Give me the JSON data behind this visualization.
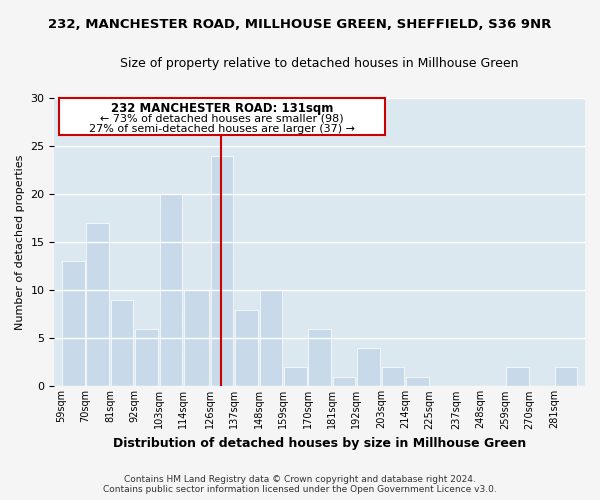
{
  "title": "232, MANCHESTER ROAD, MILLHOUSE GREEN, SHEFFIELD, S36 9NR",
  "subtitle": "Size of property relative to detached houses in Millhouse Green",
  "xlabel": "Distribution of detached houses by size in Millhouse Green",
  "ylabel": "Number of detached properties",
  "bar_color": "#c8daea",
  "bar_edge_color": "#ffffff",
  "grid_color": "#ffffff",
  "bg_color": "#dce8f0",
  "fig_color": "#f5f5f5",
  "annotation_box_edge": "#cc0000",
  "annotation_line_color": "#cc0000",
  "annotation_text_line1": "232 MANCHESTER ROAD: 131sqm",
  "annotation_text_line2": "← 73% of detached houses are smaller (98)",
  "annotation_text_line3": "27% of semi-detached houses are larger (37) →",
  "vline_color": "#cc0000",
  "bins": [
    59,
    70,
    81,
    92,
    103,
    114,
    126,
    137,
    148,
    159,
    170,
    181,
    192,
    203,
    214,
    225,
    237,
    248,
    259,
    270,
    281
  ],
  "counts": [
    13,
    17,
    9,
    6,
    20,
    10,
    24,
    8,
    10,
    2,
    6,
    1,
    4,
    2,
    1,
    0,
    0,
    0,
    2,
    0,
    2
  ],
  "tick_labels": [
    "59sqm",
    "70sqm",
    "81sqm",
    "92sqm",
    "103sqm",
    "114sqm",
    "126sqm",
    "137sqm",
    "148sqm",
    "159sqm",
    "170sqm",
    "181sqm",
    "192sqm",
    "203sqm",
    "214sqm",
    "225sqm",
    "237sqm",
    "248sqm",
    "259sqm",
    "270sqm",
    "281sqm"
  ],
  "ylim": [
    0,
    30
  ],
  "yticks": [
    0,
    5,
    10,
    15,
    20,
    25,
    30
  ],
  "footnote1": "Contains HM Land Registry data © Crown copyright and database right 2024.",
  "footnote2": "Contains public sector information licensed under the Open Government Licence v3.0."
}
